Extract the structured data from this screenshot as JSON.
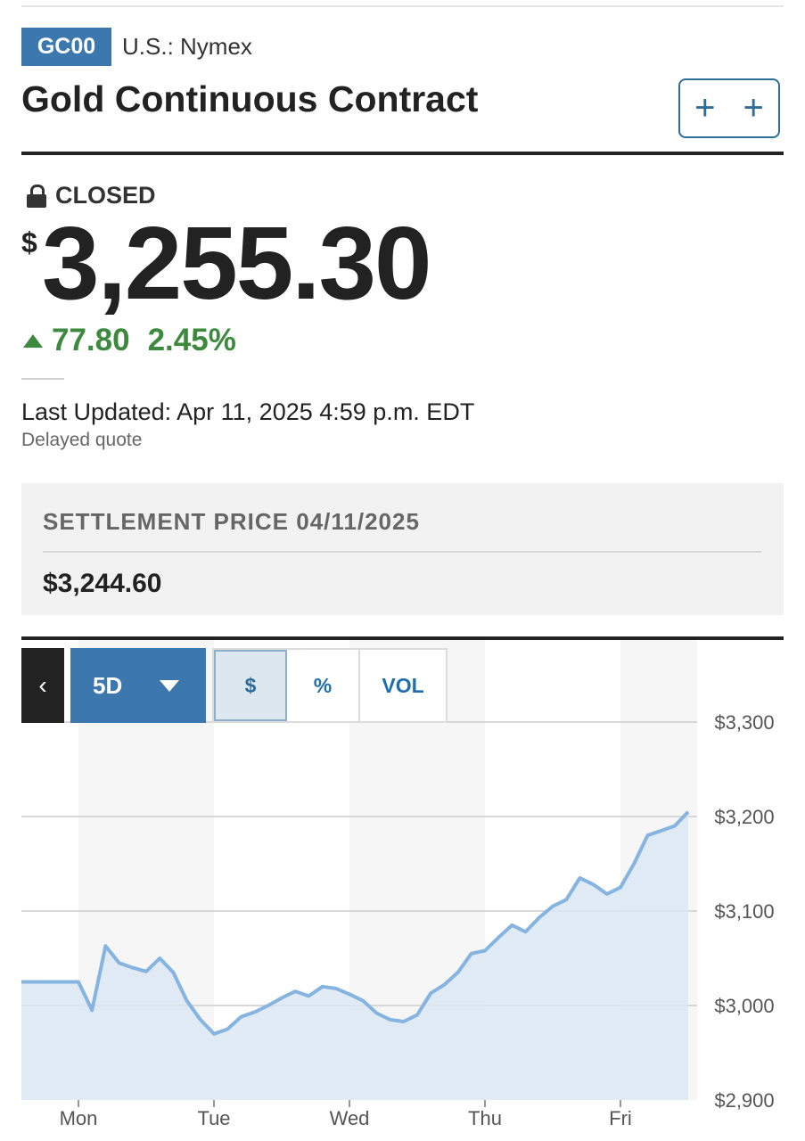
{
  "header": {
    "ticker": "GC00",
    "exchange": "U.S.: Nymex",
    "title": "Gold Continuous Contract",
    "watch_label": "+ +"
  },
  "quote": {
    "status": "CLOSED",
    "currency_symbol": "$",
    "price": "3,255.30",
    "change": "77.80",
    "change_percent": "2.45%",
    "direction_color": "#3d8a3f",
    "last_updated": "Last Updated: Apr 11, 2025 4:59 p.m. EDT",
    "delayed": "Delayed quote"
  },
  "settlement": {
    "label": "SETTLEMENT PRICE 04/11/2025",
    "value": "$3,244.60"
  },
  "chart_controls": {
    "back_label": "‹",
    "range_label": "5D",
    "modes": [
      "$",
      "%",
      "VOL"
    ],
    "active_mode": "$"
  },
  "chart_data": {
    "type": "area",
    "x_tick_labels": [
      "Mon",
      "Tue",
      "Wed",
      "Thu",
      "Fri"
    ],
    "y_tick_labels": [
      "$3,300",
      "$3,200",
      "$3,100",
      "$3,000",
      "$2,900"
    ],
    "y_ticks": [
      3300,
      3200,
      3100,
      3000,
      2900
    ],
    "ylim": [
      2900,
      3300
    ],
    "grid": true,
    "line_color": "#86b4e0",
    "fill_color": "#dce8f3",
    "x": [
      0.0,
      0.1,
      0.2,
      0.3,
      0.4,
      0.5,
      0.6,
      0.7,
      0.8,
      0.9,
      1.0,
      1.1,
      1.2,
      1.3,
      1.4,
      1.5,
      1.6,
      1.7,
      1.8,
      1.9,
      2.0,
      2.1,
      2.2,
      2.3,
      2.4,
      2.5,
      2.6,
      2.7,
      2.8,
      2.9,
      3.0,
      3.1,
      3.2,
      3.3,
      3.4,
      3.5,
      3.6,
      3.7,
      3.8,
      3.9,
      4.0,
      4.1,
      4.2,
      4.3,
      4.4,
      4.5,
      4.6,
      4.7,
      4.8,
      4.9,
      5.0
    ],
    "values": [
      3025,
      2995,
      3063,
      3045,
      3040,
      3036,
      3050,
      3035,
      3005,
      2985,
      2970,
      2975,
      2988,
      2993,
      3000,
      3008,
      3015,
      3010,
      3020,
      3018,
      3012,
      3005,
      2992,
      2985,
      2983,
      2990,
      3013,
      3022,
      3035,
      3055,
      3058,
      3072,
      3085,
      3078,
      3093,
      3105,
      3112,
      3135,
      3128,
      3118,
      3125,
      3150,
      3180,
      3185,
      3190,
      3205,
      3228,
      3222,
      3205,
      3233,
      3240
    ]
  }
}
